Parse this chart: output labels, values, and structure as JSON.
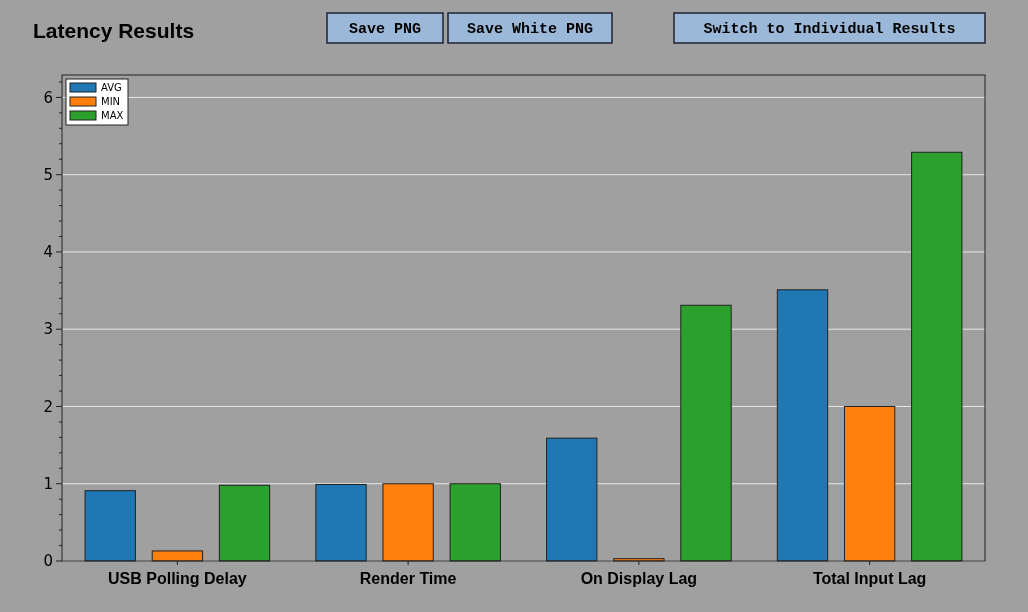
{
  "chart_data": {
    "type": "bar",
    "title": "Latency Results",
    "categories": [
      "USB Polling Delay",
      "Render Time",
      "On Display Lag",
      "Total Input Lag"
    ],
    "series": [
      {
        "name": "AVG",
        "color": "#1f77b4",
        "values": [
          0.91,
          0.99,
          1.59,
          3.51
        ]
      },
      {
        "name": "MIN",
        "color": "#ff7f0e",
        "values": [
          0.13,
          1.0,
          0.03,
          2.0
        ]
      },
      {
        "name": "MAX",
        "color": "#2ca02c",
        "values": [
          0.98,
          1.0,
          3.31,
          5.29
        ]
      }
    ],
    "ylim": [
      0,
      6.29
    ],
    "yticks": [
      0,
      {
        "value": 0.2,
        "label": null
      },
      {
        "value": 0.4,
        "label": null
      },
      {
        "value": 0.6,
        "label": null
      },
      {
        "value": 0.8,
        "label": null
      },
      1,
      {
        "value": 1.2,
        "label": null
      },
      {
        "value": 1.4,
        "label": null
      },
      {
        "value": 1.6,
        "label": null
      },
      {
        "value": 1.8,
        "label": null
      },
      2,
      {
        "value": 2.2,
        "label": null
      },
      {
        "value": 2.4,
        "label": null
      },
      {
        "value": 2.6,
        "label": null
      },
      {
        "value": 2.8,
        "label": null
      },
      3,
      {
        "value": 3.2,
        "label": null
      },
      {
        "value": 3.4,
        "label": null
      },
      {
        "value": 3.6,
        "label": null
      },
      {
        "value": 3.8,
        "label": null
      },
      4,
      {
        "value": 4.2,
        "label": null
      },
      {
        "value": 4.4,
        "label": null
      },
      {
        "value": 4.6,
        "label": null
      },
      {
        "value": 4.8,
        "label": null
      },
      5,
      {
        "value": 5.2,
        "label": null
      },
      {
        "value": 5.4,
        "label": null
      },
      {
        "value": 5.6,
        "label": null
      },
      {
        "value": 5.8,
        "label": null
      },
      6,
      {
        "value": 6.2,
        "label": null
      }
    ],
    "grid": "y",
    "legend": "top left",
    "annotations": [
      "Save PNG",
      "Save White PNG",
      "Switch to Individual Results"
    ]
  }
}
